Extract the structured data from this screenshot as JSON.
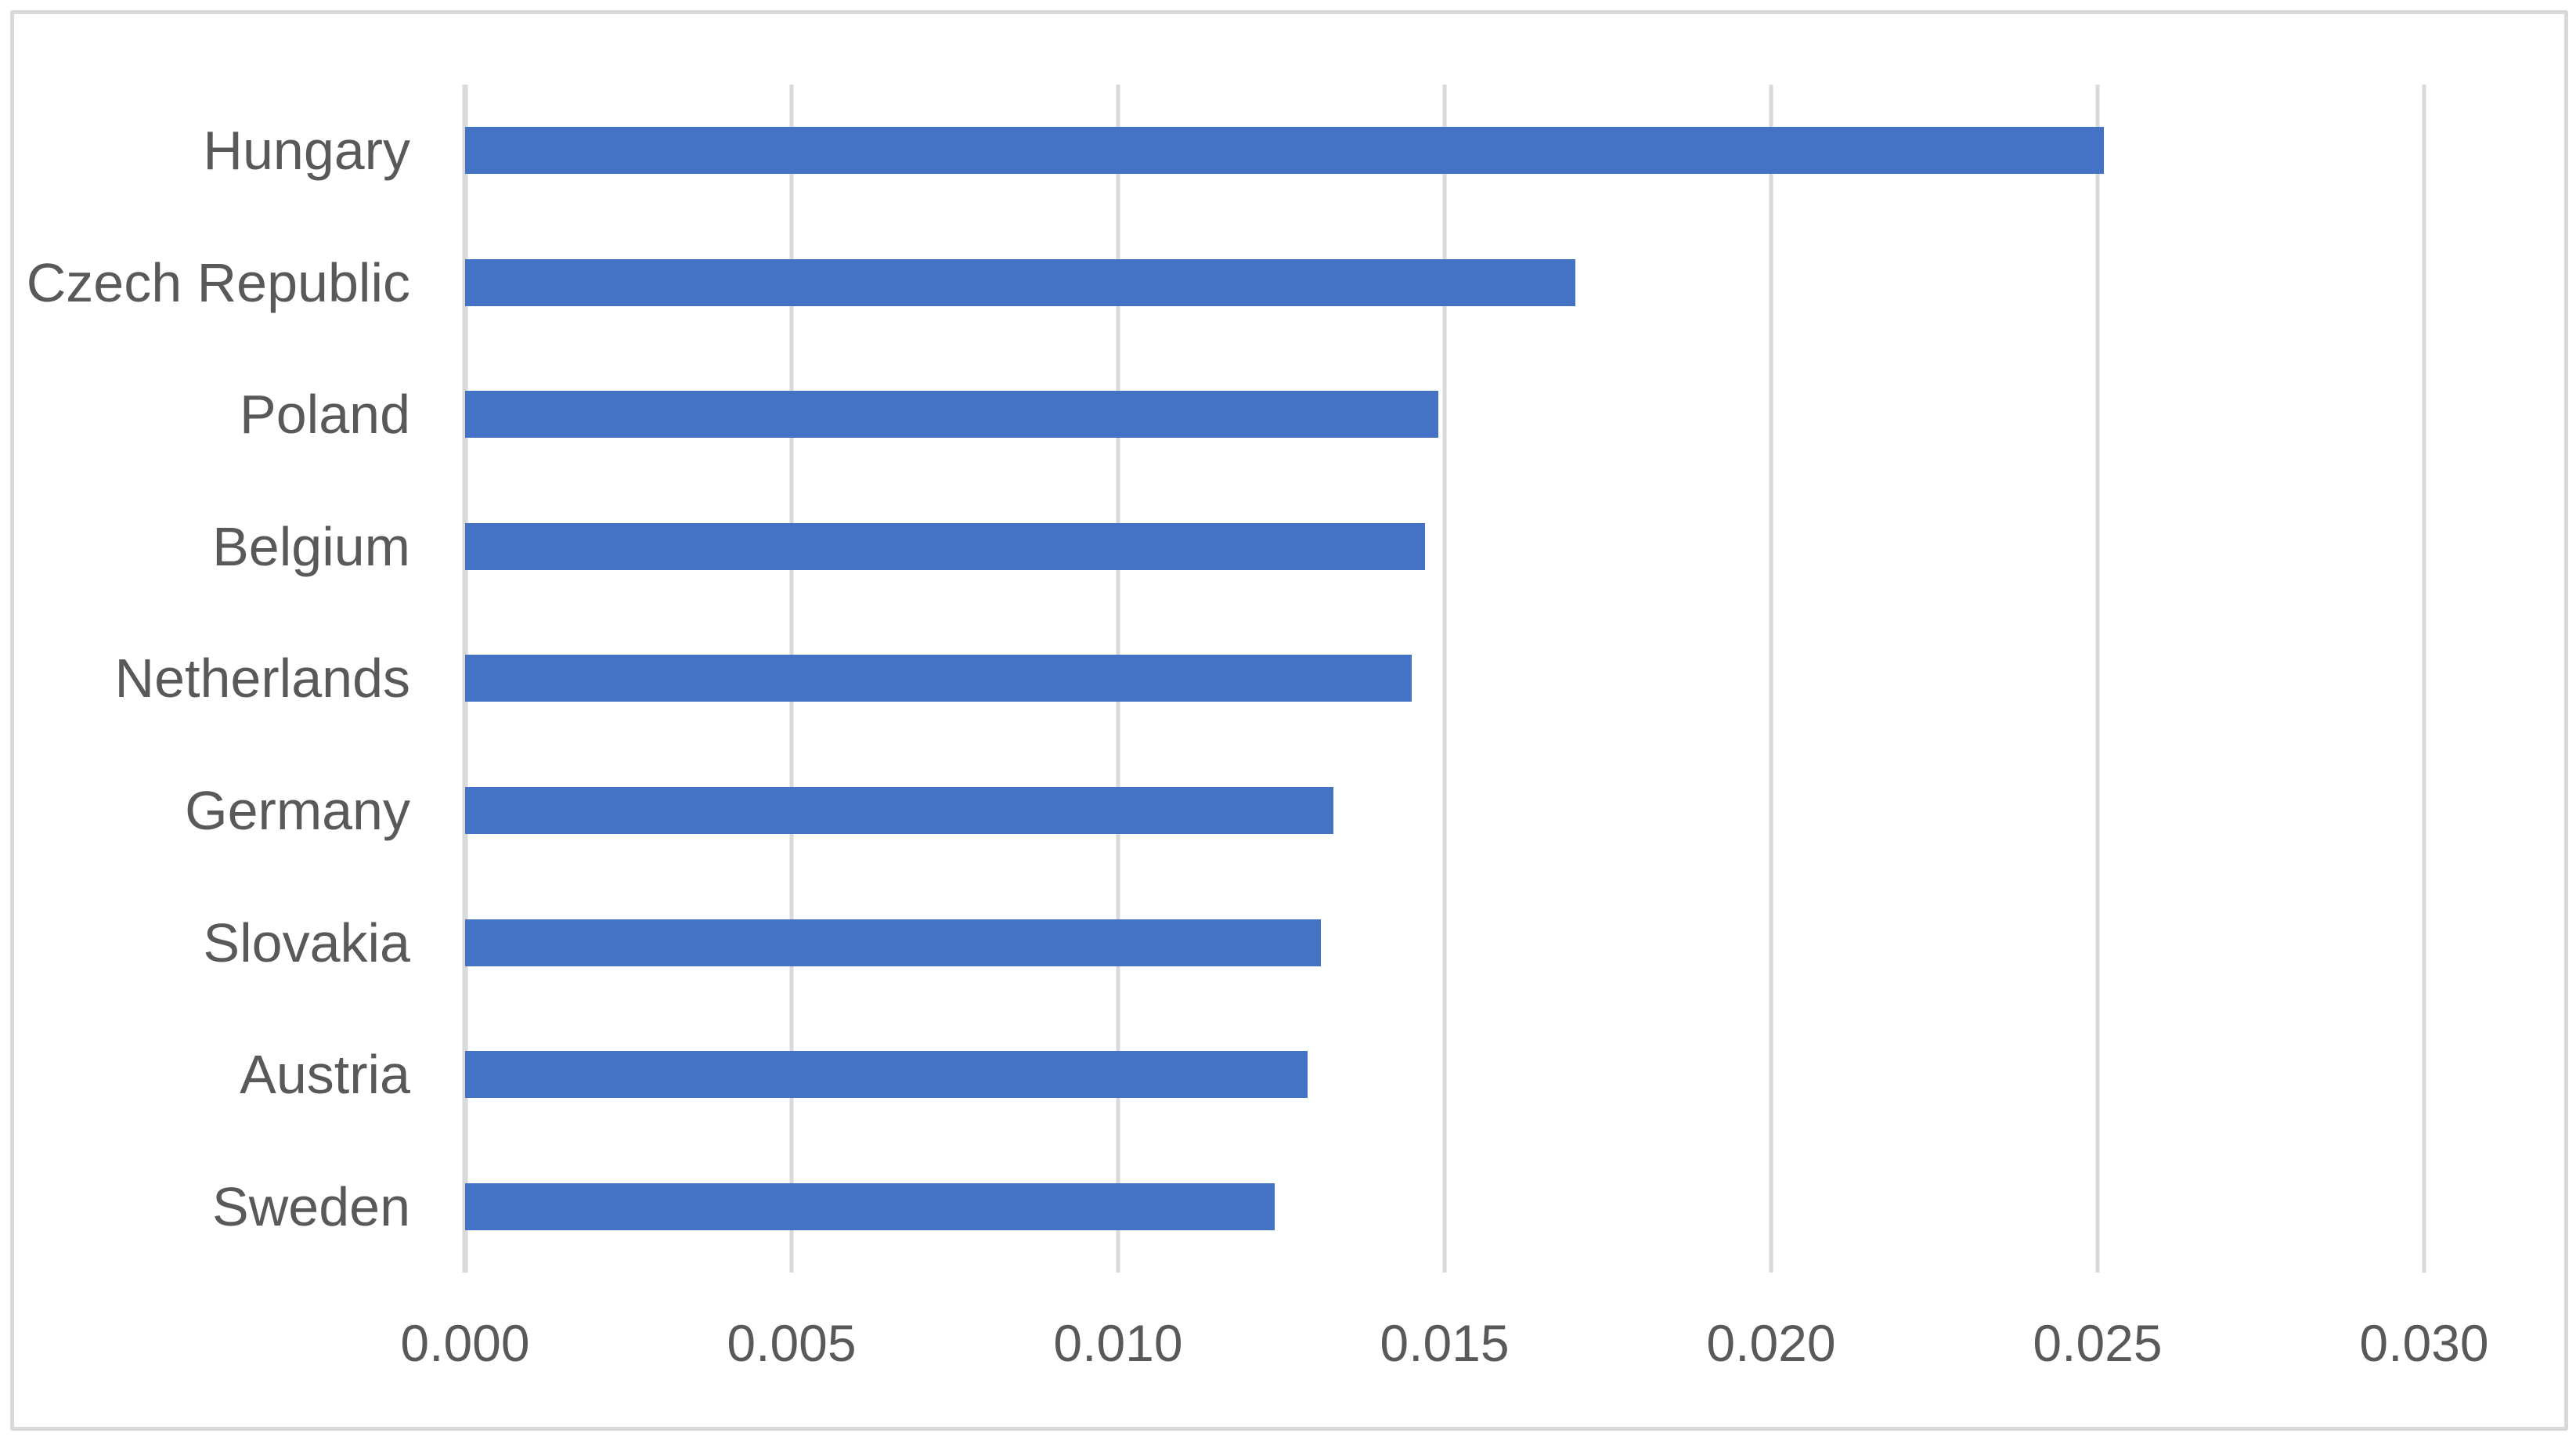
{
  "chart": {
    "background_color": "#FFFFFF",
    "border_color": "#D9D9D9",
    "bar_color": "#4472C4",
    "gridline_color": "#D9D9D9",
    "axis_line_color": "#D9D9D9",
    "category_label_color": "#595959",
    "tick_label_color": "#595959"
  },
  "chart_data": {
    "type": "bar",
    "orientation": "horizontal",
    "title": "",
    "xlabel": "",
    "ylabel": "",
    "categories": [
      "Hungary",
      "Czech Republic",
      "Poland",
      "Belgium",
      "Netherlands",
      "Germany",
      "Slovakia",
      "Austria",
      "Sweden"
    ],
    "values": [
      0.0251,
      0.017,
      0.0149,
      0.0147,
      0.0145,
      0.0133,
      0.0131,
      0.0129,
      0.0124
    ],
    "xlim": [
      0.0,
      0.03
    ],
    "xticks": [
      0.0,
      0.005,
      0.01,
      0.015,
      0.02,
      0.025,
      0.03
    ],
    "xtick_labels": [
      "0.000",
      "0.005",
      "0.010",
      "0.015",
      "0.020",
      "0.025",
      "0.030"
    ],
    "grid": "vertical-gridlines-on",
    "legend": "none"
  }
}
